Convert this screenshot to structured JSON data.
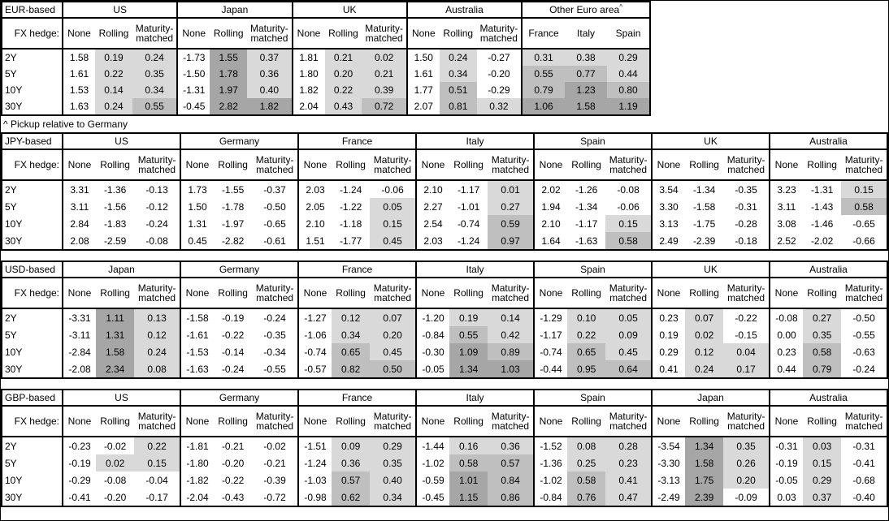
{
  "footnote": "^ Pickup relative to Germany",
  "row_header_label": "FX hedge:",
  "tenors": [
    "2Y",
    "5Y",
    "10Y",
    "30Y"
  ],
  "hedge_columns": [
    "None",
    "Rolling",
    "Maturity-matched"
  ],
  "colors": {
    "background": "#ffffff",
    "border": "#000000",
    "shade_light": "#d9d9d9",
    "shade_mid": "#bfbfbf",
    "shade_dark": "#a6a6a6"
  },
  "shading_rule": {
    "exempt_columns": [
      "None"
    ],
    "light_min": 0,
    "mid_min": 0.5,
    "dark_min": 1.0
  },
  "chart_data": [
    {
      "type": "table",
      "base": "EUR-based",
      "groups": [
        {
          "country": "US",
          "values": [
            [
              "1.58",
              "0.19",
              "0.24"
            ],
            [
              "1.61",
              "0.22",
              "0.35"
            ],
            [
              "1.53",
              "0.14",
              "0.34"
            ],
            [
              "1.63",
              "0.24",
              "0.55"
            ]
          ]
        },
        {
          "country": "Japan",
          "values": [
            [
              "-1.73",
              "1.55",
              "0.37"
            ],
            [
              "-1.50",
              "1.78",
              "0.36"
            ],
            [
              "-1.31",
              "1.97",
              "0.40"
            ],
            [
              "-0.45",
              "2.82",
              "1.82"
            ]
          ]
        },
        {
          "country": "UK",
          "values": [
            [
              "1.81",
              "0.21",
              "0.02"
            ],
            [
              "1.80",
              "0.20",
              "0.21"
            ],
            [
              "1.82",
              "0.22",
              "0.39"
            ],
            [
              "2.04",
              "0.43",
              "0.72"
            ]
          ]
        },
        {
          "country": "Australia",
          "values": [
            [
              "1.50",
              "0.24",
              "-0.27"
            ],
            [
              "1.61",
              "0.34",
              "-0.20"
            ],
            [
              "1.77",
              "0.51",
              "-0.29"
            ],
            [
              "2.07",
              "0.81",
              "0.32"
            ]
          ]
        },
        {
          "country": "Other Euro area",
          "marker": "^",
          "columns": [
            "France",
            "Italy",
            "Spain"
          ],
          "values": [
            [
              "0.31",
              "0.38",
              "0.29"
            ],
            [
              "0.55",
              "0.77",
              "0.44"
            ],
            [
              "0.79",
              "1.23",
              "0.80"
            ],
            [
              "1.06",
              "1.58",
              "1.19"
            ]
          ]
        }
      ]
    },
    {
      "type": "table",
      "base": "JPY-based",
      "groups": [
        {
          "country": "US",
          "values": [
            [
              "3.31",
              "-1.36",
              "-0.13"
            ],
            [
              "3.11",
              "-1.56",
              "-0.12"
            ],
            [
              "2.84",
              "-1.83",
              "-0.24"
            ],
            [
              "2.08",
              "-2.59",
              "-0.08"
            ]
          ]
        },
        {
          "country": "Germany",
          "values": [
            [
              "1.73",
              "-1.55",
              "-0.37"
            ],
            [
              "1.50",
              "-1.78",
              "-0.50"
            ],
            [
              "1.31",
              "-1.97",
              "-0.65"
            ],
            [
              "0.45",
              "-2.82",
              "-0.61"
            ]
          ]
        },
        {
          "country": "France",
          "values": [
            [
              "2.03",
              "-1.24",
              "-0.06"
            ],
            [
              "2.05",
              "-1.22",
              "0.05"
            ],
            [
              "2.10",
              "-1.18",
              "0.15"
            ],
            [
              "1.51",
              "-1.77",
              "0.45"
            ]
          ]
        },
        {
          "country": "Italy",
          "values": [
            [
              "2.10",
              "-1.17",
              "0.01"
            ],
            [
              "2.27",
              "-1.01",
              "0.27"
            ],
            [
              "2.54",
              "-0.74",
              "0.59"
            ],
            [
              "2.03",
              "-1.24",
              "0.97"
            ]
          ]
        },
        {
          "country": "Spain",
          "values": [
            [
              "2.02",
              "-1.26",
              "-0.08"
            ],
            [
              "1.94",
              "-1.34",
              "-0.06"
            ],
            [
              "2.10",
              "-1.17",
              "0.15"
            ],
            [
              "1.64",
              "-1.63",
              "0.58"
            ]
          ]
        },
        {
          "country": "UK",
          "values": [
            [
              "3.54",
              "-1.34",
              "-0.35"
            ],
            [
              "3.30",
              "-1.58",
              "-0.31"
            ],
            [
              "3.13",
              "-1.75",
              "-0.28"
            ],
            [
              "2.49",
              "-2.39",
              "-0.18"
            ]
          ]
        },
        {
          "country": "Australia",
          "values": [
            [
              "3.23",
              "-1.31",
              "0.15"
            ],
            [
              "3.11",
              "-1.43",
              "0.58"
            ],
            [
              "3.08",
              "-1.46",
              "-0.65"
            ],
            [
              "2.52",
              "-2.02",
              "-0.66"
            ]
          ]
        }
      ]
    },
    {
      "type": "table",
      "base": "USD-based",
      "groups": [
        {
          "country": "Japan",
          "values": [
            [
              "-3.31",
              "1.11",
              "0.13"
            ],
            [
              "-3.11",
              "1.31",
              "0.12"
            ],
            [
              "-2.84",
              "1.58",
              "0.24"
            ],
            [
              "-2.08",
              "2.34",
              "0.08"
            ]
          ]
        },
        {
          "country": "Germany",
          "values": [
            [
              "-1.58",
              "-0.19",
              "-0.24"
            ],
            [
              "-1.61",
              "-0.22",
              "-0.35"
            ],
            [
              "-1.53",
              "-0.14",
              "-0.34"
            ],
            [
              "-1.63",
              "-0.24",
              "-0.55"
            ]
          ]
        },
        {
          "country": "France",
          "values": [
            [
              "-1.27",
              "0.12",
              "0.07"
            ],
            [
              "-1.06",
              "0.34",
              "0.20"
            ],
            [
              "-0.74",
              "0.65",
              "0.45"
            ],
            [
              "-0.57",
              "0.82",
              "0.50"
            ]
          ]
        },
        {
          "country": "Italy",
          "values": [
            [
              "-1.20",
              "0.19",
              "0.14"
            ],
            [
              "-0.84",
              "0.55",
              "0.42"
            ],
            [
              "-0.30",
              "1.09",
              "0.89"
            ],
            [
              "-0.05",
              "1.34",
              "1.03"
            ]
          ]
        },
        {
          "country": "Spain",
          "values": [
            [
              "-1.29",
              "0.10",
              "0.05"
            ],
            [
              "-1.17",
              "0.22",
              "0.09"
            ],
            [
              "-0.74",
              "0.65",
              "0.45"
            ],
            [
              "-0.44",
              "0.95",
              "0.64"
            ]
          ]
        },
        {
          "country": "UK",
          "values": [
            [
              "0.23",
              "0.07",
              "-0.22"
            ],
            [
              "0.19",
              "0.02",
              "-0.15"
            ],
            [
              "0.29",
              "0.12",
              "0.04"
            ],
            [
              "0.41",
              "0.24",
              "0.17"
            ]
          ]
        },
        {
          "country": "Australia",
          "values": [
            [
              "-0.08",
              "0.27",
              "-0.50"
            ],
            [
              "0.00",
              "0.35",
              "-0.55"
            ],
            [
              "0.23",
              "0.58",
              "-0.63"
            ],
            [
              "0.44",
              "0.79",
              "-0.24"
            ]
          ]
        }
      ]
    },
    {
      "type": "table",
      "base": "GBP-based",
      "groups": [
        {
          "country": "US",
          "values": [
            [
              "-0.23",
              "-0.02",
              "0.22"
            ],
            [
              "-0.19",
              "0.02",
              "0.15"
            ],
            [
              "-0.29",
              "-0.08",
              "-0.04"
            ],
            [
              "-0.41",
              "-0.20",
              "-0.17"
            ]
          ]
        },
        {
          "country": "Germany",
          "values": [
            [
              "-1.81",
              "-0.21",
              "-0.02"
            ],
            [
              "-1.80",
              "-0.20",
              "-0.21"
            ],
            [
              "-1.82",
              "-0.22",
              "-0.39"
            ],
            [
              "-2.04",
              "-0.43",
              "-0.72"
            ]
          ]
        },
        {
          "country": "France",
          "values": [
            [
              "-1.51",
              "0.09",
              "0.29"
            ],
            [
              "-1.24",
              "0.36",
              "0.35"
            ],
            [
              "-1.03",
              "0.57",
              "0.40"
            ],
            [
              "-0.98",
              "0.62",
              "0.34"
            ]
          ]
        },
        {
          "country": "Italy",
          "values": [
            [
              "-1.44",
              "0.16",
              "0.36"
            ],
            [
              "-1.02",
              "0.58",
              "0.57"
            ],
            [
              "-0.59",
              "1.01",
              "0.84"
            ],
            [
              "-0.45",
              "1.15",
              "0.86"
            ]
          ]
        },
        {
          "country": "Spain",
          "values": [
            [
              "-1.52",
              "0.08",
              "0.28"
            ],
            [
              "-1.36",
              "0.25",
              "0.23"
            ],
            [
              "-1.02",
              "0.58",
              "0.41"
            ],
            [
              "-0.84",
              "0.76",
              "0.47"
            ]
          ]
        },
        {
          "country": "Japan",
          "values": [
            [
              "-3.54",
              "1.34",
              "0.35"
            ],
            [
              "-3.30",
              "1.58",
              "0.26"
            ],
            [
              "-3.13",
              "1.75",
              "0.20"
            ],
            [
              "-2.49",
              "2.39",
              "-0.09"
            ]
          ]
        },
        {
          "country": "Australia",
          "values": [
            [
              "-0.31",
              "0.03",
              "-0.31"
            ],
            [
              "-0.19",
              "0.15",
              "-0.41"
            ],
            [
              "-0.05",
              "0.29",
              "-0.68"
            ],
            [
              "0.03",
              "0.37",
              "-0.40"
            ]
          ]
        }
      ]
    }
  ]
}
